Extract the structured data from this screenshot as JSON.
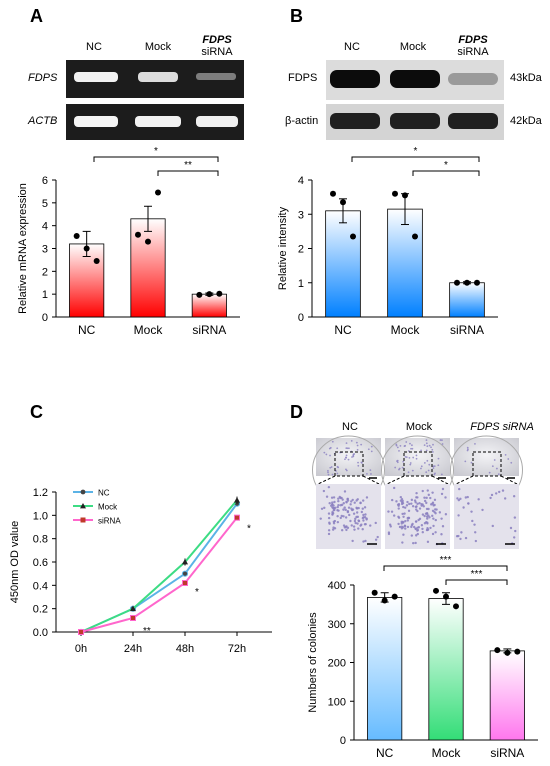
{
  "panels": {
    "a": {
      "letter": "A",
      "gel_headers": [
        "NC",
        "Mock",
        "FDPS",
        "siRNA"
      ],
      "gel_rows": [
        "FDPS",
        "ACTB"
      ],
      "sig_top": "*",
      "sig_bottom": "**"
    },
    "b": {
      "letter": "B",
      "blot_headers": [
        "NC",
        "Mock",
        "FDPS",
        "siRNA"
      ],
      "blot_rows": [
        "FDPS",
        "β-actin"
      ],
      "blot_sizes": [
        "43kDa",
        "42kDa"
      ],
      "sig_top": "*",
      "sig_bottom": "*"
    },
    "c": {
      "letter": "C"
    },
    "d": {
      "letter": "D",
      "plate_headers": [
        "NC",
        "Mock",
        "FDPS siRNA"
      ],
      "sig_top": "***",
      "sig_bottom": "***"
    }
  },
  "colors": {
    "red_gradient": [
      "#ff0000",
      "#ffffff"
    ],
    "blue_gradient": [
      "#0080ff",
      "#ffffff"
    ],
    "nc_line": "#5bb3e6",
    "mock_line": "#3ddc84",
    "sirna_line": "#ff66cc",
    "stain": "#8a7fc0"
  },
  "chart_data": [
    {
      "type": "bar",
      "categories": [
        "NC",
        "Mock",
        "siRNA"
      ],
      "values": [
        3.2,
        4.3,
        1.0
      ],
      "errors": [
        0.55,
        0.55,
        0.05
      ],
      "points": [
        [
          3.55,
          3.0,
          2.45
        ],
        [
          3.6,
          3.3,
          5.45
        ],
        [
          0.97,
          1.0,
          1.02
        ]
      ],
      "ylabel": "Relative mRNA expression",
      "ylim": [
        0,
        6
      ],
      "yticks": [
        "0",
        "1",
        "2",
        "3",
        "4",
        "5",
        "6"
      ]
    },
    {
      "type": "bar",
      "categories": [
        "NC",
        "Mock",
        "siRNA"
      ],
      "values": [
        3.1,
        3.15,
        1.0
      ],
      "errors": [
        0.35,
        0.45,
        0.03
      ],
      "points": [
        [
          3.6,
          3.35,
          2.35
        ],
        [
          3.6,
          3.55,
          2.35
        ],
        [
          1.0,
          1.0,
          1.0
        ]
      ],
      "ylabel": "Relative intensity",
      "ylim": [
        0,
        4
      ],
      "yticks": [
        "0",
        "1",
        "2",
        "3",
        "4"
      ]
    },
    {
      "type": "line",
      "x": [
        "0h",
        "24h",
        "48h",
        "72h"
      ],
      "series": [
        {
          "name": "NC",
          "values": [
            0.0,
            0.2,
            0.5,
            1.1
          ],
          "errors": [
            0.005,
            0.01,
            0.02,
            0.02
          ]
        },
        {
          "name": "Mock",
          "values": [
            0.0,
            0.2,
            0.6,
            1.13
          ],
          "errors": [
            0.005,
            0.01,
            0.03,
            0.03
          ]
        },
        {
          "name": "siRNA",
          "values": [
            0.0,
            0.12,
            0.42,
            0.98
          ],
          "errors": [
            0.005,
            0.01,
            0.01,
            0.01
          ]
        }
      ],
      "annotations": [
        "**",
        "*",
        "*"
      ],
      "ylabel": "450nm OD value",
      "ylim": [
        0,
        1.2
      ],
      "yticks": [
        "0.0",
        "0.2",
        "0.4",
        "0.6",
        "0.8",
        "1.0",
        "1.2"
      ]
    },
    {
      "type": "bar",
      "categories": [
        "NC",
        "Mock",
        "siRNA"
      ],
      "values": [
        368,
        365,
        230
      ],
      "errors": [
        12,
        15,
        5
      ],
      "points": [
        [
          380,
          360,
          370
        ],
        [
          385,
          370,
          345
        ],
        [
          232,
          225,
          228
        ]
      ],
      "ylabel": "Numbers of colonies",
      "ylim": [
        0,
        400
      ],
      "yticks": [
        "0",
        "100",
        "200",
        "300",
        "400"
      ]
    }
  ]
}
